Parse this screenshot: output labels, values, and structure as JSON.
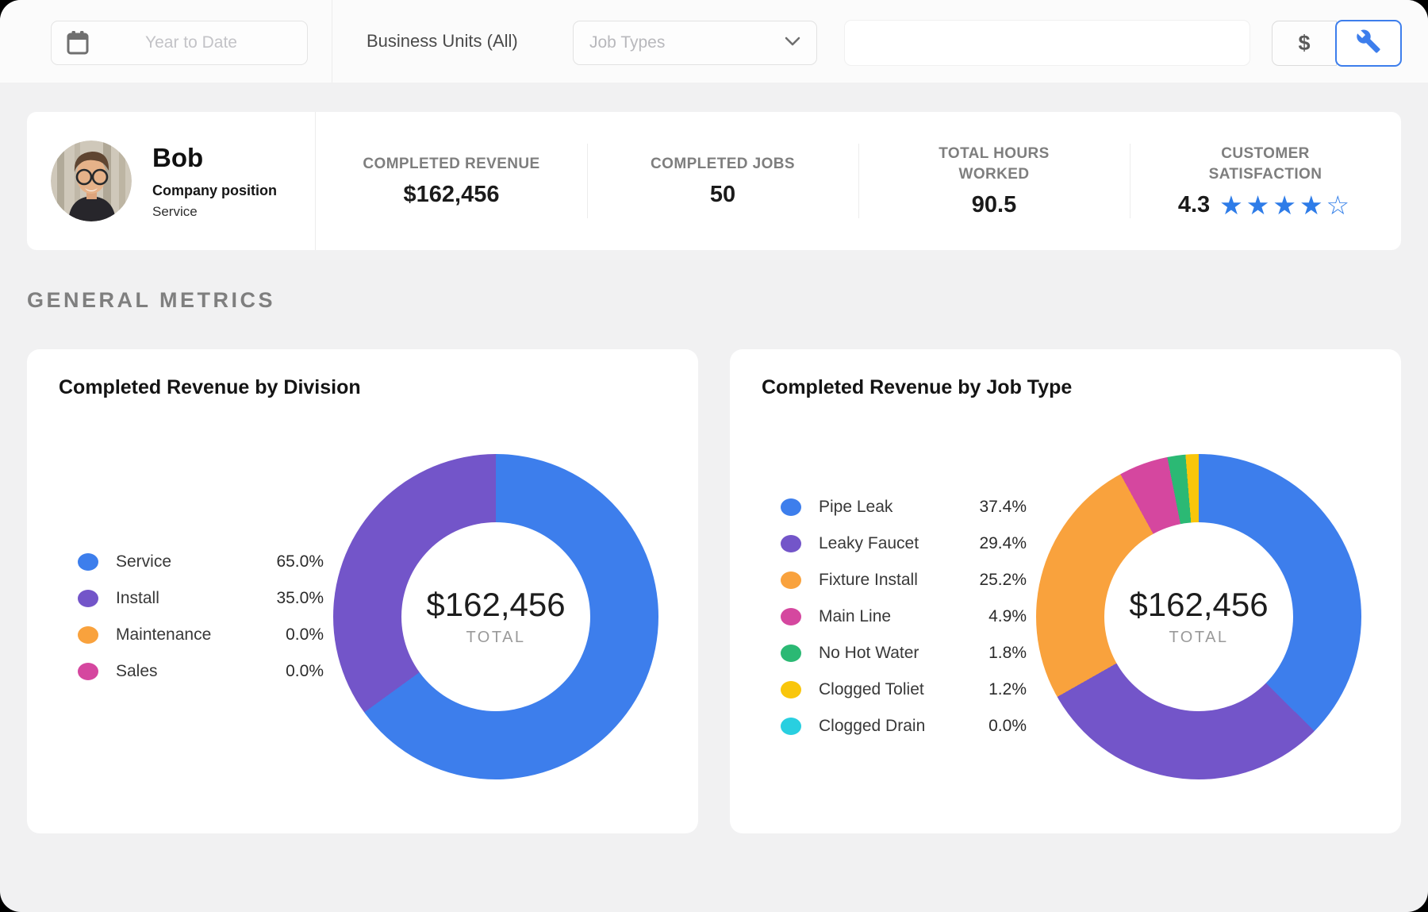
{
  "topbar": {
    "date_filter_placeholder": "Year to Date",
    "business_units_label": "Business Units (All)",
    "job_types_placeholder": "Job Types",
    "search_value": "",
    "icons": {
      "calendar-icon": "svg-calendar",
      "chevron-down-icon": "svg-chevron",
      "dollar-icon": "$",
      "wrench-icon": "svg-wrench",
      "star-filled-icon": "★",
      "star-empty-icon": "☆"
    },
    "accent_color": "#3d7eec"
  },
  "profile": {
    "name": "Bob",
    "position_label": "Company position",
    "division": "Service"
  },
  "stats": [
    {
      "label": "COMPLETED REVENUE",
      "value": "$162,456"
    },
    {
      "label": "COMPLETED JOBS",
      "value": "50"
    },
    {
      "label": "TOTAL HOURS WORKED",
      "value": "90.5"
    },
    {
      "label": "CUSTOMER SATISFACTION",
      "rating": 4.3,
      "rating_display": "4.3",
      "star_color": "#2e7ce8"
    }
  ],
  "section_title": "GENERAL METRICS",
  "chart_data": [
    {
      "type": "pie",
      "title": "Completed Revenue by Division",
      "center_value": "$162,456",
      "center_label": "TOTAL",
      "legend_position": "left",
      "series": [
        {
          "label": "Service",
          "value": 65.0,
          "display": "65.0%",
          "color": "#3d7eec"
        },
        {
          "label": "Install",
          "value": 35.0,
          "display": "35.0%",
          "color": "#7355c9"
        },
        {
          "label": "Maintenance",
          "value": 0.0,
          "display": "0.0%",
          "color": "#f9a23d"
        },
        {
          "label": "Sales",
          "value": 0.0,
          "display": "0.0%",
          "color": "#d5479f"
        }
      ]
    },
    {
      "type": "pie",
      "title": "Completed Revenue by Job Type",
      "center_value": "$162,456",
      "center_label": "TOTAL",
      "legend_position": "left",
      "series": [
        {
          "label": "Pipe Leak",
          "value": 37.4,
          "display": "37.4%",
          "color": "#3d7eec"
        },
        {
          "label": "Leaky Faucet",
          "value": 29.4,
          "display": "29.4%",
          "color": "#7355c9"
        },
        {
          "label": "Fixture Install",
          "value": 25.2,
          "display": "25.2%",
          "color": "#f9a23d"
        },
        {
          "label": "Main Line",
          "value": 4.9,
          "display": "4.9%",
          "color": "#d5479f"
        },
        {
          "label": "No Hot Water",
          "value": 1.8,
          "display": "1.8%",
          "color": "#2bb974"
        },
        {
          "label": "Clogged Toliet",
          "value": 1.2,
          "display": "1.2%",
          "color": "#f9c60b"
        },
        {
          "label": "Clogged Drain",
          "value": 0.0,
          "display": "0.0%",
          "color": "#29cfe0"
        }
      ]
    }
  ]
}
